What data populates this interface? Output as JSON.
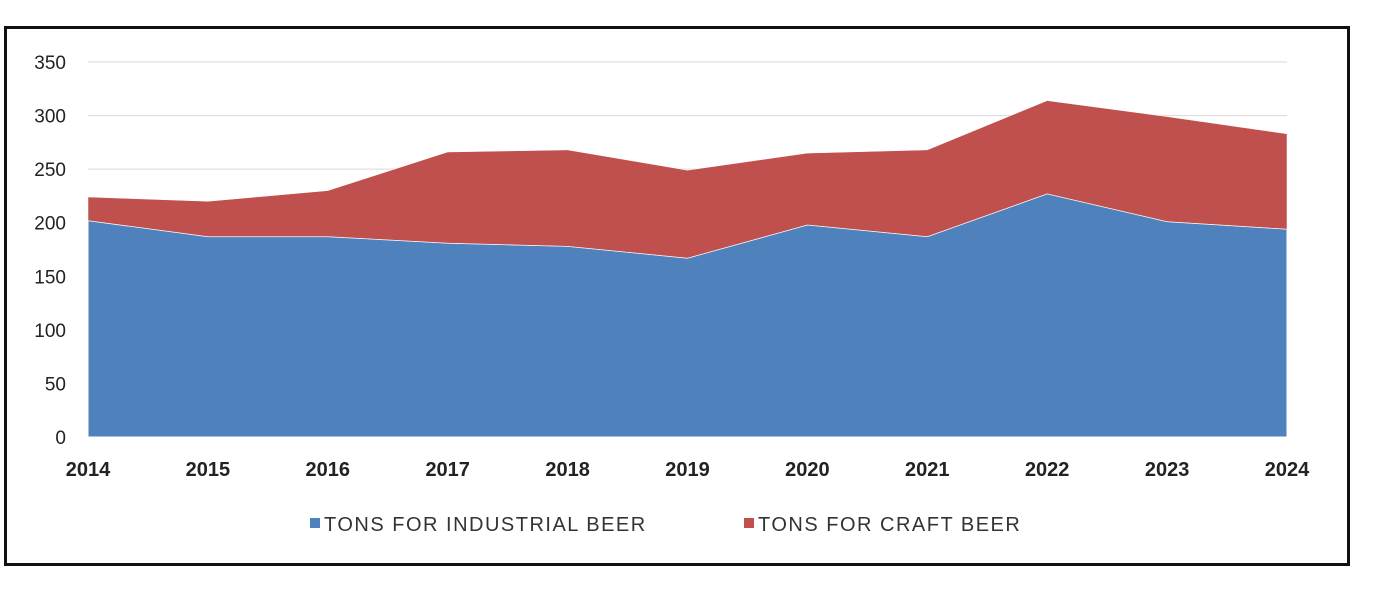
{
  "chart_data": {
    "type": "area",
    "stacked": true,
    "title": "",
    "xlabel": "",
    "ylabel": "",
    "categories": [
      "2014",
      "2015",
      "2016",
      "2017",
      "2018",
      "2019",
      "2020",
      "2021",
      "2022",
      "2023",
      "2024"
    ],
    "ylim": [
      0,
      350
    ],
    "yticks": [
      "0",
      "50",
      "100",
      "150",
      "200",
      "250",
      "300",
      "350"
    ],
    "grid": true,
    "legend_position": "bottom",
    "series": [
      {
        "name": "TONS FOR INDUSTRIAL BEER",
        "color": "#4f81bd",
        "values": [
          202,
          187,
          187,
          181,
          178,
          167,
          198,
          187,
          227,
          201,
          194
        ]
      },
      {
        "name": "TONS FOR CRAFT BEER",
        "color": "#c0504d",
        "values": [
          22,
          33,
          43,
          85,
          90,
          82,
          67,
          81,
          87,
          98,
          89
        ]
      }
    ]
  }
}
